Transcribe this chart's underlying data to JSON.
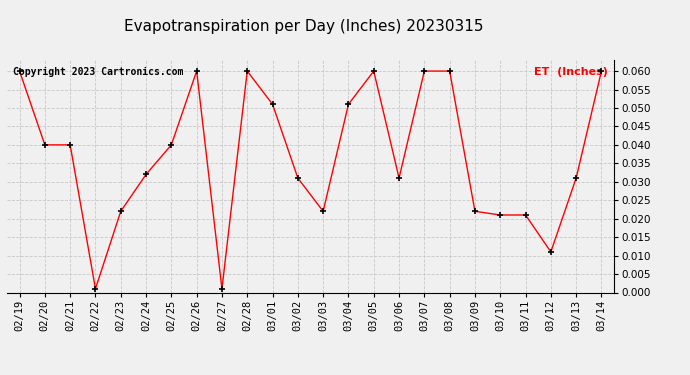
{
  "title": "Evapotranspiration per Day (Inches) 20230315",
  "copyright": "Copyright 2023 Cartronics.com",
  "legend_label": "ET  (Inches)",
  "dates": [
    "02/19",
    "02/20",
    "02/21",
    "02/22",
    "02/23",
    "02/24",
    "02/25",
    "02/26",
    "02/27",
    "02/28",
    "03/01",
    "03/02",
    "03/03",
    "03/04",
    "03/05",
    "03/06",
    "03/07",
    "03/08",
    "03/09",
    "03/10",
    "03/11",
    "03/12",
    "03/13",
    "03/14"
  ],
  "values": [
    0.06,
    0.04,
    0.04,
    0.001,
    0.022,
    0.032,
    0.04,
    0.06,
    0.001,
    0.06,
    0.051,
    0.031,
    0.022,
    0.051,
    0.06,
    0.031,
    0.06,
    0.06,
    0.022,
    0.021,
    0.021,
    0.011,
    0.031,
    0.06
  ],
  "ylim": [
    0.0,
    0.063
  ],
  "yticks": [
    0.0,
    0.005,
    0.01,
    0.015,
    0.02,
    0.025,
    0.03,
    0.035,
    0.04,
    0.045,
    0.05,
    0.055,
    0.06
  ],
  "line_color": "red",
  "marker_color": "black",
  "marker": "+",
  "bg_color": "#f0f0f0",
  "grid_color": "#c8c8c8",
  "title_fontsize": 11,
  "label_fontsize": 7.5,
  "copyright_fontsize": 7,
  "legend_color": "red"
}
